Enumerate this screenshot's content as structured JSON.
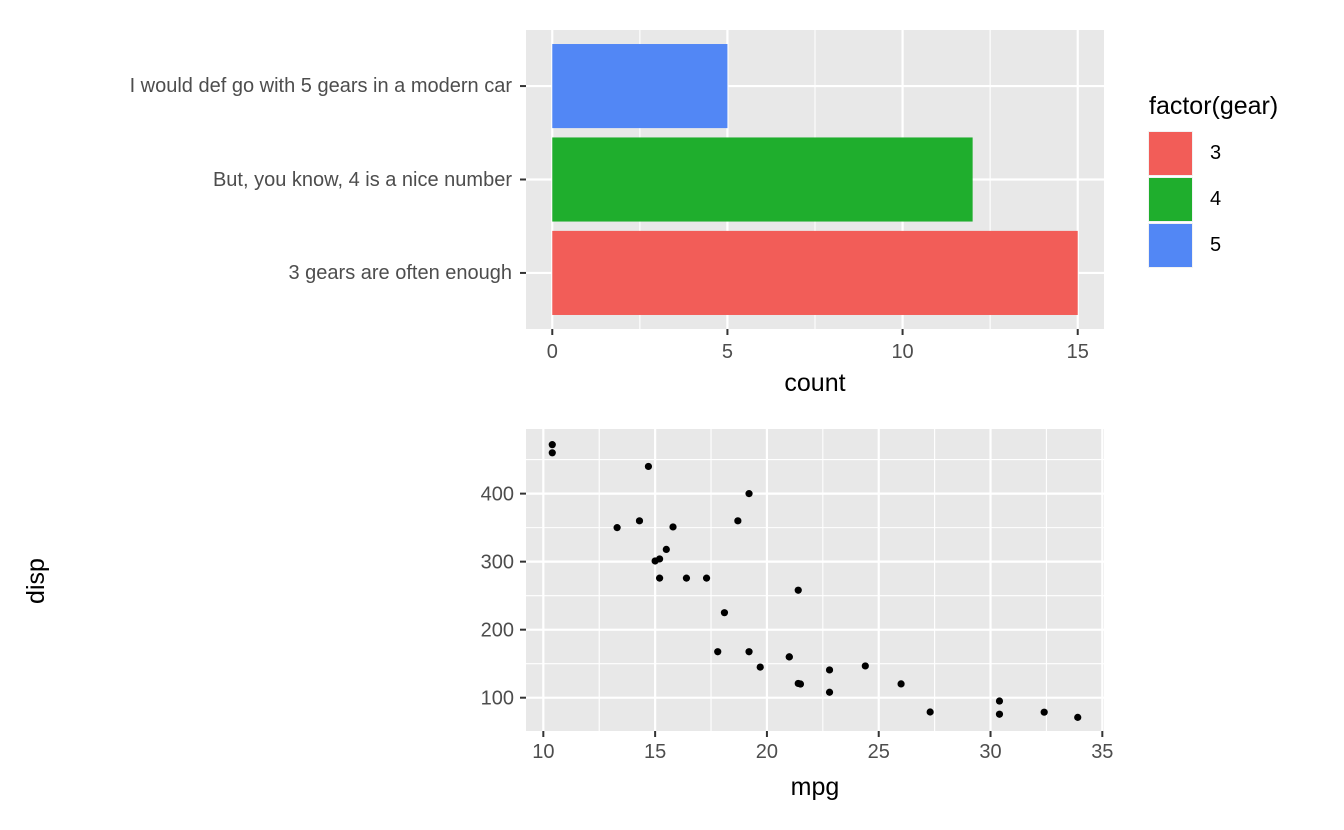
{
  "background": "#FFFFFF",
  "panel_bg": "#E8E8E8",
  "grid_color": "#FFFFFF",
  "tick_color": "#333333",
  "axis_text_color": "#4D4D4D",
  "title_color": "#000000",
  "chart_data": [
    {
      "type": "bar",
      "orientation": "horizontal",
      "title": "",
      "xlabel": "count",
      "ylabel": "",
      "categories": [
        "I would def go with 5 gears in a modern car",
        "But, you know, 4 is a nice number",
        "3 gears are often enough"
      ],
      "values": [
        5,
        12,
        15
      ],
      "bar_colors": [
        "#5287F5",
        "#1FAE2D",
        "#F25D58"
      ],
      "x_ticks": [
        0,
        5,
        10,
        15
      ],
      "x_minor": [
        2.5,
        7.5,
        12.5
      ],
      "xlim": [
        -0.75,
        15.75
      ],
      "grid": true,
      "legend_position": "right",
      "legend": {
        "title": "factor(gear)",
        "entries": [
          {
            "label": "3",
            "color": "#F25D58"
          },
          {
            "label": "4",
            "color": "#1FAE2D"
          },
          {
            "label": "5",
            "color": "#5287F5"
          }
        ]
      }
    },
    {
      "type": "scatter",
      "title": "",
      "xlabel": "mpg",
      "ylabel": "disp",
      "x_ticks": [
        10,
        15,
        20,
        25,
        30,
        35
      ],
      "y_ticks": [
        100,
        200,
        300,
        400
      ],
      "x_minor": [
        12.5,
        17.5,
        22.5,
        27.5,
        32.5
      ],
      "y_minor": [
        150,
        250,
        350,
        450
      ],
      "xlim": [
        9.225,
        35.075
      ],
      "ylim": [
        51.05,
        495
      ],
      "grid": true,
      "point_color": "#000000",
      "points": [
        [
          21.0,
          160.0
        ],
        [
          21.0,
          160.0
        ],
        [
          22.8,
          108.0
        ],
        [
          21.4,
          258.0
        ],
        [
          18.7,
          360.0
        ],
        [
          18.1,
          225.0
        ],
        [
          14.3,
          360.0
        ],
        [
          24.4,
          146.7
        ],
        [
          22.8,
          140.8
        ],
        [
          19.2,
          167.6
        ],
        [
          17.8,
          167.6
        ],
        [
          16.4,
          275.8
        ],
        [
          17.3,
          275.8
        ],
        [
          15.2,
          275.8
        ],
        [
          10.4,
          472.0
        ],
        [
          10.4,
          460.0
        ],
        [
          14.7,
          440.0
        ],
        [
          32.4,
          78.7
        ],
        [
          30.4,
          75.7
        ],
        [
          33.9,
          71.1
        ],
        [
          21.5,
          120.1
        ],
        [
          15.5,
          318.0
        ],
        [
          15.2,
          304.0
        ],
        [
          13.3,
          350.0
        ],
        [
          19.2,
          400.0
        ],
        [
          27.3,
          79.0
        ],
        [
          26.0,
          120.3
        ],
        [
          30.4,
          95.1
        ],
        [
          15.8,
          351.0
        ],
        [
          19.7,
          145.0
        ],
        [
          15.0,
          301.0
        ],
        [
          21.4,
          121.0
        ]
      ]
    }
  ]
}
